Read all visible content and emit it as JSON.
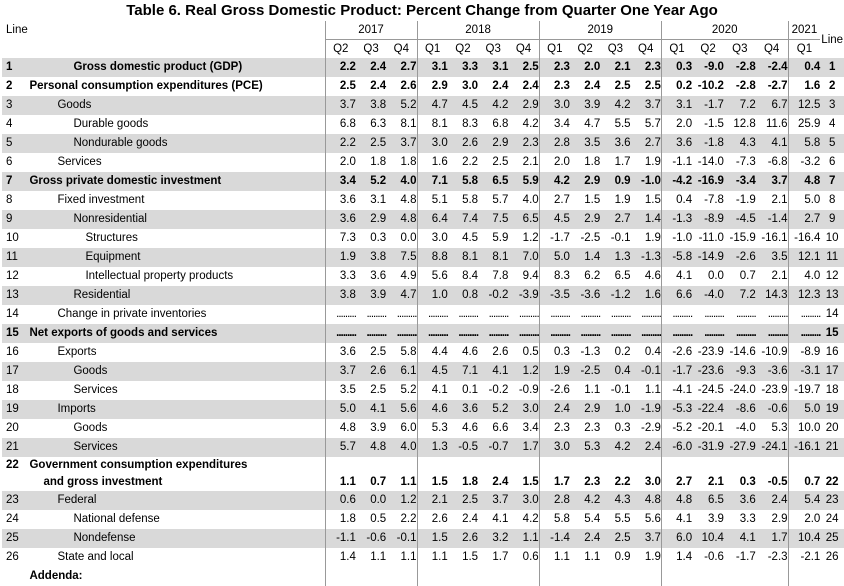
{
  "title": "Table 6. Real Gross Domestic Product: Percent Change from Quarter One Year Ago",
  "line_header": "Line",
  "years": [
    {
      "label": "2017",
      "span": 3
    },
    {
      "label": "2018",
      "span": 4
    },
    {
      "label": "2019",
      "span": 4
    },
    {
      "label": "2020",
      "span": 4
    },
    {
      "label": "2021",
      "span": 1
    }
  ],
  "quarters": [
    "Q2",
    "Q3",
    "Q4",
    "Q1",
    "Q2",
    "Q3",
    "Q4",
    "Q1",
    "Q2",
    "Q3",
    "Q4",
    "Q1",
    "Q2",
    "Q3",
    "Q4",
    "Q1"
  ],
  "rows": [
    {
      "line": "1",
      "label": "Gross domestic product (GDP)",
      "indent": 2,
      "bold": true,
      "shade": true,
      "values": [
        "2.2",
        "2.4",
        "2.7",
        "3.1",
        "3.3",
        "3.1",
        "2.5",
        "2.3",
        "2.0",
        "2.1",
        "2.3",
        "0.3",
        "-9.0",
        "-2.8",
        "-2.4",
        "0.4"
      ]
    },
    {
      "line": "2",
      "label": "Personal consumption expenditures (PCE)",
      "indent": 0,
      "bold": true,
      "shade": false,
      "values": [
        "2.5",
        "2.4",
        "2.6",
        "2.9",
        "3.0",
        "2.4",
        "2.4",
        "2.3",
        "2.4",
        "2.5",
        "2.5",
        "0.2",
        "-10.2",
        "-2.8",
        "-2.7",
        "1.6"
      ]
    },
    {
      "line": "3",
      "label": "Goods",
      "indent": 1,
      "bold": false,
      "shade": true,
      "values": [
        "3.7",
        "3.8",
        "5.2",
        "4.7",
        "4.5",
        "4.2",
        "2.9",
        "3.0",
        "3.9",
        "4.2",
        "3.7",
        "3.1",
        "-1.7",
        "7.2",
        "6.7",
        "12.5"
      ]
    },
    {
      "line": "4",
      "label": "Durable goods",
      "indent": 2,
      "bold": false,
      "shade": false,
      "values": [
        "6.8",
        "6.3",
        "8.1",
        "8.1",
        "8.3",
        "6.8",
        "4.2",
        "3.4",
        "4.7",
        "5.5",
        "5.7",
        "2.0",
        "-1.5",
        "12.8",
        "11.6",
        "25.9"
      ]
    },
    {
      "line": "5",
      "label": "Nondurable goods",
      "indent": 2,
      "bold": false,
      "shade": true,
      "values": [
        "2.2",
        "2.5",
        "3.7",
        "3.0",
        "2.6",
        "2.9",
        "2.3",
        "2.8",
        "3.5",
        "3.6",
        "2.7",
        "3.6",
        "-1.8",
        "4.3",
        "4.1",
        "5.8"
      ]
    },
    {
      "line": "6",
      "label": "Services",
      "indent": 1,
      "bold": false,
      "shade": false,
      "values": [
        "2.0",
        "1.8",
        "1.8",
        "1.6",
        "2.2",
        "2.5",
        "2.1",
        "2.0",
        "1.8",
        "1.7",
        "1.9",
        "-1.1",
        "-14.0",
        "-7.3",
        "-6.8",
        "-3.2"
      ]
    },
    {
      "line": "7",
      "label": "Gross private domestic investment",
      "indent": 0,
      "bold": true,
      "shade": true,
      "values": [
        "3.4",
        "5.2",
        "4.0",
        "7.1",
        "5.8",
        "6.5",
        "5.9",
        "4.2",
        "2.9",
        "0.9",
        "-1.0",
        "-4.2",
        "-16.9",
        "-3.4",
        "3.7",
        "4.8"
      ]
    },
    {
      "line": "8",
      "label": "Fixed investment",
      "indent": 1,
      "bold": false,
      "shade": false,
      "values": [
        "3.6",
        "3.1",
        "4.8",
        "5.1",
        "5.8",
        "5.7",
        "4.0",
        "2.7",
        "1.5",
        "1.9",
        "1.5",
        "0.4",
        "-7.8",
        "-1.9",
        "2.1",
        "5.0"
      ]
    },
    {
      "line": "9",
      "label": "Nonresidential",
      "indent": 2,
      "bold": false,
      "shade": true,
      "values": [
        "3.6",
        "2.9",
        "4.8",
        "6.4",
        "7.4",
        "7.5",
        "6.5",
        "4.5",
        "2.9",
        "2.7",
        "1.4",
        "-1.3",
        "-8.9",
        "-4.5",
        "-1.4",
        "2.7"
      ]
    },
    {
      "line": "10",
      "label": "Structures",
      "indent": 3,
      "bold": false,
      "shade": false,
      "values": [
        "7.3",
        "0.3",
        "0.0",
        "3.0",
        "4.5",
        "5.9",
        "1.2",
        "-1.7",
        "-2.5",
        "-0.1",
        "1.9",
        "-1.0",
        "-11.0",
        "-15.9",
        "-16.1",
        "-16.4"
      ]
    },
    {
      "line": "11",
      "label": "Equipment",
      "indent": 3,
      "bold": false,
      "shade": true,
      "values": [
        "1.9",
        "3.8",
        "7.5",
        "8.8",
        "8.1",
        "8.1",
        "7.0",
        "5.0",
        "1.4",
        "1.3",
        "-1.3",
        "-5.8",
        "-14.9",
        "-2.6",
        "3.5",
        "12.1"
      ]
    },
    {
      "line": "12",
      "label": "Intellectual property products",
      "indent": 3,
      "bold": false,
      "shade": false,
      "values": [
        "3.3",
        "3.6",
        "4.9",
        "5.6",
        "8.4",
        "7.8",
        "9.4",
        "8.3",
        "6.2",
        "6.5",
        "4.6",
        "4.1",
        "0.0",
        "0.7",
        "2.1",
        "4.0"
      ]
    },
    {
      "line": "13",
      "label": "Residential",
      "indent": 2,
      "bold": false,
      "shade": true,
      "values": [
        "3.8",
        "3.9",
        "4.7",
        "1.0",
        "0.8",
        "-0.2",
        "-3.9",
        "-3.5",
        "-3.6",
        "-1.2",
        "1.6",
        "6.6",
        "-4.0",
        "7.2",
        "14.3",
        "12.3"
      ]
    },
    {
      "line": "14",
      "label": "Change in private inventories",
      "indent": 1,
      "bold": false,
      "shade": false,
      "dots": true,
      "values": [
        ".........",
        ".........",
        ".........",
        ".........",
        ".........",
        ".........",
        ".........",
        ".........",
        ".........",
        ".........",
        ".........",
        ".........",
        ".........",
        ".........",
        ".........",
        "........."
      ]
    },
    {
      "line": "15",
      "label": "Net exports of goods and services",
      "indent": 0,
      "bold": true,
      "shade": true,
      "dots": true,
      "values": [
        ".........",
        ".........",
        ".........",
        ".........",
        ".........",
        ".........",
        ".........",
        ".........",
        ".........",
        ".........",
        ".........",
        ".........",
        ".........",
        ".........",
        ".........",
        "........."
      ]
    },
    {
      "line": "16",
      "label": "Exports",
      "indent": 1,
      "bold": false,
      "shade": false,
      "values": [
        "3.6",
        "2.5",
        "5.8",
        "4.4",
        "4.6",
        "2.6",
        "0.5",
        "0.3",
        "-1.3",
        "0.2",
        "0.4",
        "-2.6",
        "-23.9",
        "-14.6",
        "-10.9",
        "-8.9"
      ]
    },
    {
      "line": "17",
      "label": "Goods",
      "indent": 2,
      "bold": false,
      "shade": true,
      "values": [
        "3.7",
        "2.6",
        "6.1",
        "4.5",
        "7.1",
        "4.1",
        "1.2",
        "1.9",
        "-2.5",
        "0.4",
        "-0.1",
        "-1.7",
        "-23.6",
        "-9.3",
        "-3.6",
        "-3.1"
      ]
    },
    {
      "line": "18",
      "label": "Services",
      "indent": 2,
      "bold": false,
      "shade": false,
      "values": [
        "3.5",
        "2.5",
        "5.2",
        "4.1",
        "0.1",
        "-0.2",
        "-0.9",
        "-2.6",
        "1.1",
        "-0.1",
        "1.1",
        "-4.1",
        "-24.5",
        "-24.0",
        "-23.9",
        "-19.7"
      ]
    },
    {
      "line": "19",
      "label": "Imports",
      "indent": 1,
      "bold": false,
      "shade": true,
      "values": [
        "5.0",
        "4.1",
        "5.6",
        "4.6",
        "3.6",
        "5.2",
        "3.0",
        "2.4",
        "2.9",
        "1.0",
        "-1.9",
        "-5.3",
        "-22.4",
        "-8.6",
        "-0.6",
        "5.0"
      ]
    },
    {
      "line": "20",
      "label": "Goods",
      "indent": 2,
      "bold": false,
      "shade": false,
      "values": [
        "4.8",
        "3.9",
        "6.0",
        "5.3",
        "4.6",
        "6.6",
        "3.4",
        "2.3",
        "2.3",
        "0.3",
        "-2.9",
        "-5.2",
        "-20.1",
        "-4.0",
        "5.3",
        "10.0"
      ]
    },
    {
      "line": "21",
      "label": "Services",
      "indent": 2,
      "bold": false,
      "shade": true,
      "values": [
        "5.7",
        "4.8",
        "4.0",
        "1.3",
        "-0.5",
        "-0.7",
        "1.7",
        "3.0",
        "5.3",
        "4.2",
        "2.4",
        "-6.0",
        "-31.9",
        "-27.9",
        "-24.1",
        "-16.1"
      ]
    }
  ],
  "row22": {
    "line": "22",
    "label1": "Government consumption expenditures",
    "label2": "and gross investment",
    "values": [
      "1.1",
      "0.7",
      "1.1",
      "1.5",
      "1.8",
      "2.4",
      "1.5",
      "1.7",
      "2.3",
      "2.2",
      "3.0",
      "2.7",
      "2.1",
      "0.3",
      "-0.5",
      "0.7"
    ]
  },
  "rows_tail": [
    {
      "line": "23",
      "label": "Federal",
      "indent": 1,
      "bold": false,
      "shade": true,
      "values": [
        "0.6",
        "0.0",
        "1.2",
        "2.1",
        "2.5",
        "3.7",
        "3.0",
        "2.8",
        "4.2",
        "4.3",
        "4.8",
        "4.8",
        "6.5",
        "3.6",
        "2.4",
        "5.4"
      ]
    },
    {
      "line": "24",
      "label": "National defense",
      "indent": 2,
      "bold": false,
      "shade": false,
      "values": [
        "1.8",
        "0.5",
        "2.2",
        "2.6",
        "2.4",
        "4.1",
        "4.2",
        "5.8",
        "5.4",
        "5.5",
        "5.6",
        "4.1",
        "3.9",
        "3.3",
        "2.9",
        "2.0"
      ]
    },
    {
      "line": "25",
      "label": "Nondefense",
      "indent": 2,
      "bold": false,
      "shade": true,
      "values": [
        "-1.1",
        "-0.6",
        "-0.1",
        "1.5",
        "2.6",
        "3.2",
        "1.1",
        "-1.4",
        "2.4",
        "2.5",
        "3.7",
        "6.0",
        "10.4",
        "4.1",
        "1.7",
        "10.4"
      ]
    },
    {
      "line": "26",
      "label": "State and local",
      "indent": 1,
      "bold": false,
      "shade": false,
      "values": [
        "1.4",
        "1.1",
        "1.1",
        "1.1",
        "1.5",
        "1.7",
        "0.6",
        "1.1",
        "1.1",
        "0.9",
        "1.9",
        "1.4",
        "-0.6",
        "-1.7",
        "-2.3",
        "-2.1"
      ]
    }
  ],
  "addenda": "Addenda:"
}
